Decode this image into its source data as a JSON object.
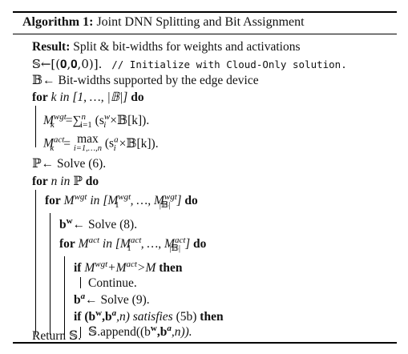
{
  "algorithm": {
    "caption_label": "Algorithm 1:",
    "caption_title": "Joint DNN Splitting and Bit Assignment",
    "result_label": "Result:",
    "result_text": "Split & bit-widths for weights and activations",
    "init_lhs": "𝕊←[(𝟎,𝟎,0)].",
    "init_comment": "// Initialize with Cloud-Only solution.",
    "bits_line": "𝔹← Bit-widths supported by the edge device",
    "for1_kw": "for",
    "for1_var": "k",
    "for1_in": "in",
    "for1_range": "[1, …, |𝔹|]",
    "do_kw": "do",
    "mwgt_expr": "M",
    "mwgt_sup": "wgt",
    "mwgt_sub": "k",
    "mwgt_rhs": "=∑",
    "mwgt_sum_top": "n",
    "mwgt_sum_bot": "i=1",
    "mwgt_tail": "(s",
    "mwgt_tail_sup": "w",
    "mwgt_tail_sub": "i",
    "mwgt_tail_end": "×𝔹[k]).",
    "mact_expr": "M",
    "mact_sup": "act",
    "mact_sub": "k",
    "mact_eq": "=",
    "mact_max": "max",
    "mact_max_sub": "i=1,…,n",
    "mact_tail": "(s",
    "mact_tail_sup": "a",
    "mact_tail_sub": "i",
    "mact_tail_end": "×𝔹[k]).",
    "p_line": "ℙ← Solve (6).",
    "for2_var": "n",
    "for2_in": "in",
    "for2_set": "ℙ",
    "for3_m": "M",
    "for3_sup": "wgt",
    "for3_in": "in",
    "for3_range_a": "[M",
    "for3_range_a_sup": "wgt",
    "for3_range_a_sub": "1",
    "for3_range_mid": ", …, M",
    "for3_range_b_sup": "wgt",
    "for3_range_b_sub": "|𝔹|",
    "for3_range_end": "]",
    "bw_line": "b",
    "bw_sup": "w",
    "bw_rest": "← Solve (8).",
    "for4_m": "M",
    "for4_sup": "act",
    "for4_in": "in",
    "for4_range_a": "[M",
    "for4_range_a_sup": "act",
    "for4_range_a_sub": "1",
    "for4_range_mid": ", …, M",
    "for4_range_b_sup": "act",
    "for4_range_b_sub": "|𝔹|",
    "for4_range_end": "]",
    "if1_kw": "if",
    "if1_a": "M",
    "if1_a_sup": "wgt",
    "if1_plus": "+M",
    "if1_b_sup": "act",
    "if1_rest": ">M",
    "then_kw": "then",
    "continue_text": "Continue.",
    "ba_line": "b",
    "ba_sup": "a",
    "ba_rest": "← Solve (9).",
    "if2_kw": "if",
    "if2_expr_open": "(b",
    "if2_expr_w": "w",
    "if2_expr_mid": ",b",
    "if2_expr_a": "a",
    "if2_expr_end": ",n)",
    "if2_satisfies": "satisfies",
    "if2_ref": "(5b)",
    "append_a": "𝕊.append((b",
    "append_w": "w",
    "append_mid": ",b",
    "append_sup_a": "a",
    "append_end": ",n)).",
    "return_text": "Return 𝕊."
  }
}
